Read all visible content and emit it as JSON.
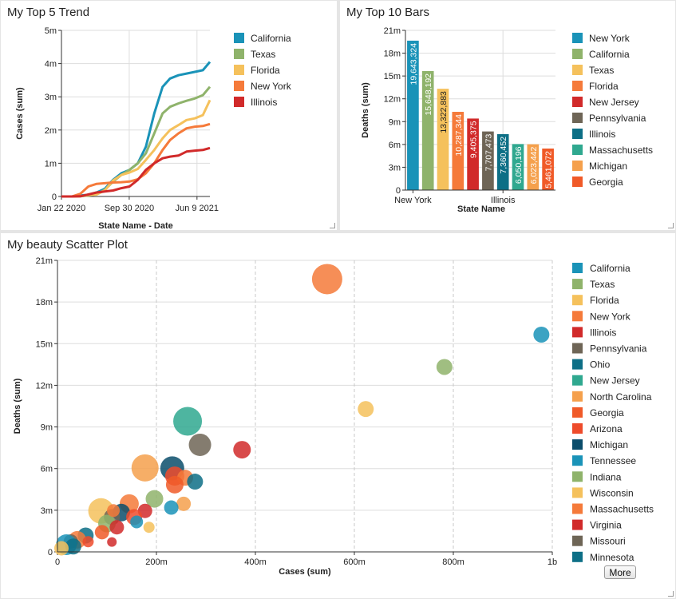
{
  "panels": {
    "trend": {
      "title": "My Top 5 Trend"
    },
    "bars": {
      "title": "My Top 10 Bars"
    },
    "scatter": {
      "title": "My beauty Scatter Plot",
      "more_label": "More"
    }
  },
  "chart_data": [
    {
      "type": "line",
      "title": "My Top 5 Trend",
      "xlabel": "State Name - Date",
      "ylabel": "Cases (sum)",
      "x_ticks": [
        "Jan 22 2020",
        "Sep 30 2020",
        "Jun 9 2021"
      ],
      "y_ticks": [
        "0",
        "1m",
        "2m",
        "3m",
        "4m",
        "5m"
      ],
      "ylim": [
        0,
        5000000
      ],
      "grid": true,
      "legend_position": "right",
      "x": [
        "2020-01-22",
        "2020-03-01",
        "2020-04-01",
        "2020-05-01",
        "2020-06-01",
        "2020-07-01",
        "2020-08-01",
        "2020-09-01",
        "2020-10-01",
        "2020-11-01",
        "2020-12-01",
        "2021-01-01",
        "2021-02-01",
        "2021-03-01",
        "2021-04-01",
        "2021-05-01",
        "2021-06-01",
        "2021-07-01",
        "2021-07-27"
      ],
      "series": [
        {
          "name": "California",
          "color": "#1a93b8",
          "values": [
            0,
            0,
            30000,
            50000,
            120000,
            230000,
            500000,
            700000,
            800000,
            1000000,
            1500000,
            2500000,
            3300000,
            3550000,
            3650000,
            3700000,
            3750000,
            3800000,
            4050000
          ]
        },
        {
          "name": "Texas",
          "color": "#8fb36b",
          "values": [
            0,
            0,
            5000,
            30000,
            70000,
            200000,
            450000,
            650000,
            800000,
            1000000,
            1300000,
            1900000,
            2500000,
            2700000,
            2800000,
            2880000,
            2950000,
            3050000,
            3300000
          ]
        },
        {
          "name": "Florida",
          "color": "#f5c15c",
          "values": [
            0,
            0,
            10000,
            40000,
            60000,
            180000,
            480000,
            650000,
            720000,
            830000,
            1100000,
            1400000,
            1750000,
            2000000,
            2150000,
            2300000,
            2350000,
            2450000,
            2900000
          ]
        },
        {
          "name": "New York",
          "color": "#f57a3a",
          "values": [
            0,
            0,
            80000,
            300000,
            380000,
            400000,
            420000,
            430000,
            450000,
            520000,
            700000,
            1000000,
            1400000,
            1700000,
            1900000,
            2050000,
            2100000,
            2120000,
            2180000
          ]
        },
        {
          "name": "Illinois",
          "color": "#d12a2a",
          "values": [
            0,
            0,
            5000,
            60000,
            120000,
            150000,
            180000,
            250000,
            300000,
            500000,
            800000,
            1000000,
            1150000,
            1200000,
            1230000,
            1350000,
            1380000,
            1400000,
            1460000
          ]
        }
      ]
    },
    {
      "type": "bar",
      "title": "My Top 10 Bars",
      "xlabel": "State Name",
      "ylabel": "Deaths (sum)",
      "x_ticks": [
        "New York",
        "Illinois"
      ],
      "y_ticks": [
        "0",
        "3m",
        "6m",
        "9m",
        "12m",
        "15m",
        "18m",
        "21m"
      ],
      "ylim": [
        0,
        21000000
      ],
      "grid": true,
      "legend_position": "right",
      "categories": [
        "New York",
        "California",
        "Texas",
        "Florida",
        "New Jersey",
        "Pennsylvania",
        "Illinois",
        "Massachusetts",
        "Michigan",
        "Georgia"
      ],
      "values": [
        19643324,
        15648192,
        13322883,
        10287344,
        9405375,
        7707473,
        7360452,
        6050196,
        6023442,
        5461072
      ],
      "data_labels": [
        "19,643,324",
        "15,648,192",
        "13,322,883",
        "10,287,344",
        "9,405,375",
        "7,707,473",
        "7,360,452",
        "6,050,196",
        "6,023,442",
        "5,461,072"
      ],
      "colors": [
        "#1a93b8",
        "#8fb36b",
        "#f5c15c",
        "#f57a3a",
        "#d12a2a",
        "#6e6556",
        "#0d6f86",
        "#2fa88f",
        "#f5a04c",
        "#f05a28"
      ]
    },
    {
      "type": "scatter",
      "title": "My beauty Scatter Plot",
      "xlabel": "Cases (sum)",
      "ylabel": "Deaths (sum)",
      "x_ticks": [
        "0",
        "200m",
        "400m",
        "600m",
        "800m",
        "1b"
      ],
      "y_ticks": [
        "0",
        "3m",
        "6m",
        "9m",
        "12m",
        "15m",
        "18m",
        "21m"
      ],
      "xlim": [
        0,
        1000000000
      ],
      "ylim": [
        0,
        21000000
      ],
      "grid": true,
      "legend_position": "right",
      "legend": [
        {
          "name": "California",
          "color": "#1a93b8"
        },
        {
          "name": "Texas",
          "color": "#8fb36b"
        },
        {
          "name": "Florida",
          "color": "#f5c15c"
        },
        {
          "name": "New York",
          "color": "#f57a3a"
        },
        {
          "name": "Illinois",
          "color": "#d12a2a"
        },
        {
          "name": "Pennsylvania",
          "color": "#6e6556"
        },
        {
          "name": "Ohio",
          "color": "#0d6f86"
        },
        {
          "name": "New Jersey",
          "color": "#2fa88f"
        },
        {
          "name": "North Carolina",
          "color": "#f5a04c"
        },
        {
          "name": "Georgia",
          "color": "#f05a28"
        },
        {
          "name": "Arizona",
          "color": "#ee4b2b"
        },
        {
          "name": "Michigan",
          "color": "#0b4d6b"
        },
        {
          "name": "Tennessee",
          "color": "#1a93b8"
        },
        {
          "name": "Indiana",
          "color": "#8fb36b"
        },
        {
          "name": "Wisconsin",
          "color": "#f5c15c"
        },
        {
          "name": "Massachusetts",
          "color": "#f57a3a"
        },
        {
          "name": "Virginia",
          "color": "#d12a2a"
        },
        {
          "name": "Missouri",
          "color": "#6e6556"
        },
        {
          "name": "Minnesota",
          "color": "#0d6f86"
        }
      ],
      "points": [
        {
          "x": 545000000,
          "y": 19650000,
          "r": 19,
          "color": "#f57a3a"
        },
        {
          "x": 978000000,
          "y": 15650000,
          "r": 10,
          "color": "#1a93b8"
        },
        {
          "x": 782000000,
          "y": 13320000,
          "r": 10,
          "color": "#8fb36b"
        },
        {
          "x": 623000000,
          "y": 10290000,
          "r": 10,
          "color": "#f5c15c"
        },
        {
          "x": 263000000,
          "y": 9410000,
          "r": 18,
          "color": "#2fa88f"
        },
        {
          "x": 288000000,
          "y": 7710000,
          "r": 14,
          "color": "#6e6556"
        },
        {
          "x": 373000000,
          "y": 7360000,
          "r": 11,
          "color": "#d12a2a"
        },
        {
          "x": 177000000,
          "y": 6050000,
          "r": 17,
          "color": "#f5a04c"
        },
        {
          "x": 232000000,
          "y": 6020000,
          "r": 15,
          "color": "#0b4d6b"
        },
        {
          "x": 237000000,
          "y": 5460000,
          "r": 12,
          "color": "#ee4b2b"
        },
        {
          "x": 258000000,
          "y": 5340000,
          "r": 10,
          "color": "#f57a3a"
        },
        {
          "x": 278000000,
          "y": 5060000,
          "r": 10,
          "color": "#0d6f86"
        },
        {
          "x": 237000000,
          "y": 4840000,
          "r": 11,
          "color": "#f05a28"
        },
        {
          "x": 196000000,
          "y": 3820000,
          "r": 11,
          "color": "#8fb36b"
        },
        {
          "x": 255000000,
          "y": 3460000,
          "r": 9,
          "color": "#f5a04c"
        },
        {
          "x": 230000000,
          "y": 3190000,
          "r": 9,
          "color": "#1a93b8"
        },
        {
          "x": 145000000,
          "y": 3460000,
          "r": 12,
          "color": "#f57a3a"
        },
        {
          "x": 177000000,
          "y": 2950000,
          "r": 9,
          "color": "#d12a2a"
        },
        {
          "x": 88000000,
          "y": 2950000,
          "r": 16,
          "color": "#f5c15c"
        },
        {
          "x": 129000000,
          "y": 2830000,
          "r": 11,
          "color": "#0b4d6b"
        },
        {
          "x": 110000000,
          "y": 2510000,
          "r": 10,
          "color": "#6e6556"
        },
        {
          "x": 155000000,
          "y": 2510000,
          "r": 10,
          "color": "#ee4b2b"
        },
        {
          "x": 100000000,
          "y": 2040000,
          "r": 11,
          "color": "#8fb36b"
        },
        {
          "x": 160000000,
          "y": 2160000,
          "r": 8,
          "color": "#1a93b8"
        },
        {
          "x": 185000000,
          "y": 1770000,
          "r": 7,
          "color": "#f5c15c"
        },
        {
          "x": 120000000,
          "y": 1770000,
          "r": 9,
          "color": "#d12a2a"
        },
        {
          "x": 90000000,
          "y": 1420000,
          "r": 9,
          "color": "#f05a28"
        },
        {
          "x": 57000000,
          "y": 1180000,
          "r": 10,
          "color": "#0d6f86"
        },
        {
          "x": 40000000,
          "y": 870000,
          "r": 11,
          "color": "#f57a3a"
        },
        {
          "x": 27000000,
          "y": 750000,
          "r": 9,
          "color": "#6e6556"
        },
        {
          "x": 62000000,
          "y": 730000,
          "r": 7,
          "color": "#ee4b2b"
        },
        {
          "x": 110000000,
          "y": 710000,
          "r": 6,
          "color": "#d12a2a"
        },
        {
          "x": 18000000,
          "y": 520000,
          "r": 13,
          "color": "#1a93b8"
        },
        {
          "x": 32000000,
          "y": 390000,
          "r": 10,
          "color": "#0d6f86"
        },
        {
          "x": 8000000,
          "y": 260000,
          "r": 9,
          "color": "#f5c15c"
        },
        {
          "x": 113000000,
          "y": 2980000,
          "r": 8,
          "color": "#f57a3a"
        }
      ]
    }
  ]
}
